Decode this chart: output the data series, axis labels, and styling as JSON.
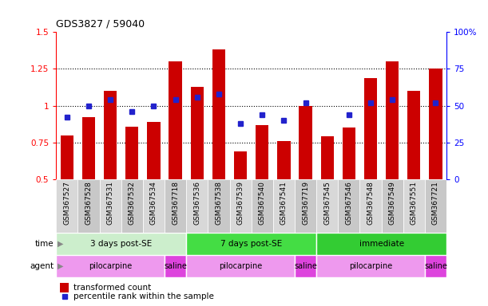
{
  "title": "GDS3827 / 59040",
  "samples": [
    "GSM367527",
    "GSM367528",
    "GSM367531",
    "GSM367532",
    "GSM367534",
    "GSM367718",
    "GSM367536",
    "GSM367538",
    "GSM367539",
    "GSM367540",
    "GSM367541",
    "GSM367719",
    "GSM367545",
    "GSM367546",
    "GSM367548",
    "GSM367549",
    "GSM367551",
    "GSM367721"
  ],
  "transformed_count": [
    0.8,
    0.92,
    1.1,
    0.86,
    0.89,
    1.3,
    1.13,
    1.38,
    0.69,
    0.87,
    0.76,
    1.0,
    0.79,
    0.85,
    1.19,
    1.3,
    1.1,
    1.25
  ],
  "percentile_rank_vals": [
    0.92,
    1.0,
    1.04,
    0.96,
    1.0,
    1.04,
    1.06,
    1.08,
    0.88,
    0.94,
    0.9,
    1.02,
    null,
    0.94,
    1.02,
    1.04,
    null,
    1.02
  ],
  "bar_color": "#cc0000",
  "dot_color": "#2222cc",
  "ylim": [
    0.5,
    1.5
  ],
  "y2lim": [
    0,
    100
  ],
  "yticks": [
    0.5,
    0.75,
    1.0,
    1.25,
    1.5
  ],
  "y2ticks": [
    0,
    25,
    50,
    75,
    100
  ],
  "ytick_labels": [
    "0.5",
    "0.75",
    "1",
    "1.25",
    "1.5"
  ],
  "y2tick_labels": [
    "0",
    "25",
    "50",
    "75",
    "100%"
  ],
  "time_groups": [
    {
      "label": "3 days post-SE",
      "start": 0,
      "end": 6,
      "color": "#cceecc"
    },
    {
      "label": "7 days post-SE",
      "start": 6,
      "end": 12,
      "color": "#44dd44"
    },
    {
      "label": "immediate",
      "start": 12,
      "end": 18,
      "color": "#33cc33"
    }
  ],
  "agent_groups": [
    {
      "label": "pilocarpine",
      "start": 0,
      "end": 5,
      "color": "#ee99ee"
    },
    {
      "label": "saline",
      "start": 5,
      "end": 6,
      "color": "#dd44dd"
    },
    {
      "label": "pilocarpine",
      "start": 6,
      "end": 11,
      "color": "#ee99ee"
    },
    {
      "label": "saline",
      "start": 11,
      "end": 12,
      "color": "#dd44dd"
    },
    {
      "label": "pilocarpine",
      "start": 12,
      "end": 17,
      "color": "#ee99ee"
    },
    {
      "label": "saline",
      "start": 17,
      "end": 18,
      "color": "#dd44dd"
    }
  ],
  "legend_bar_label": "transformed count",
  "legend_dot_label": "percentile rank within the sample",
  "label_bg_even": "#d8d8d8",
  "label_bg_odd": "#c8c8c8",
  "label_sep_color": "#ffffff"
}
